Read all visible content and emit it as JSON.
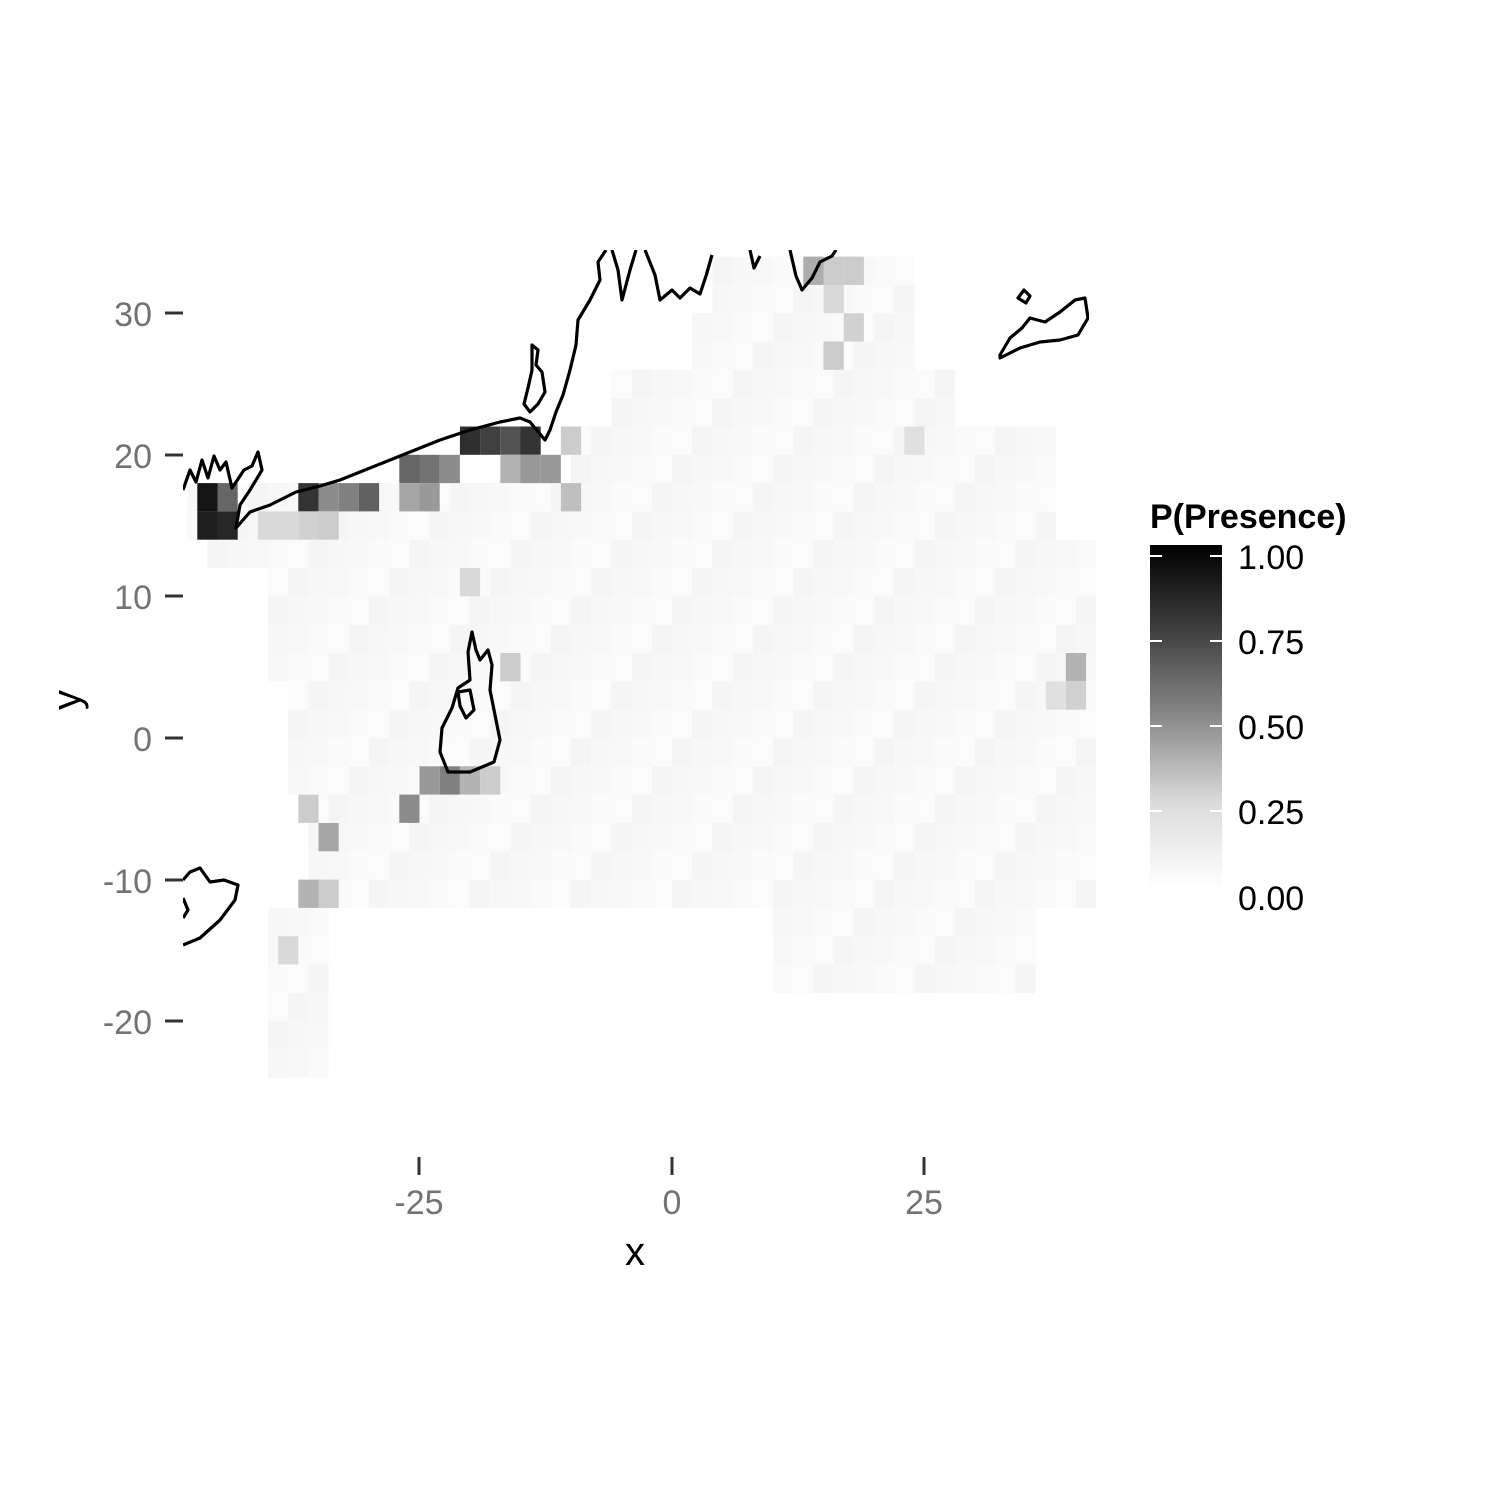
{
  "chart_data": {
    "type": "heatmap",
    "xlabel": "x",
    "ylabel": "y",
    "x_ticks": [
      "-25",
      "0",
      "25"
    ],
    "x_tick_values": [
      -25,
      0,
      25
    ],
    "y_ticks": [
      "30",
      "20",
      "10",
      "0",
      "-10",
      "-20"
    ],
    "y_tick_values": [
      30,
      20,
      10,
      0,
      -10,
      -20
    ],
    "xlim": [
      -49,
      41
    ],
    "ylim": [
      -30,
      35
    ],
    "grid": false,
    "cell_size": 2,
    "color_scale": {
      "low": "#ffffff",
      "high": "#000000"
    },
    "legend": {
      "title": "P(Presence)",
      "position": "right",
      "labels": [
        "1.00",
        "0.75",
        "0.50",
        "0.25",
        "0.00"
      ],
      "values": [
        1.0,
        0.75,
        0.5,
        0.25,
        0.0
      ]
    },
    "highlight_cells": [
      {
        "x": -46,
        "y": 17,
        "p": 0.92
      },
      {
        "x": -46,
        "y": 15,
        "p": 0.88
      },
      {
        "x": -44,
        "y": 15,
        "p": 0.85
      },
      {
        "x": -44,
        "y": 17,
        "p": 0.6
      },
      {
        "x": -36,
        "y": 17,
        "p": 0.8
      },
      {
        "x": -32,
        "y": 17,
        "p": 0.5
      },
      {
        "x": -30,
        "y": 17,
        "p": 0.62
      },
      {
        "x": -34,
        "y": 17,
        "p": 0.45
      },
      {
        "x": -26,
        "y": 19,
        "p": 0.6
      },
      {
        "x": -24,
        "y": 19,
        "p": 0.55
      },
      {
        "x": -22,
        "y": 19,
        "p": 0.45
      },
      {
        "x": -20,
        "y": 21,
        "p": 0.82
      },
      {
        "x": -18,
        "y": 21,
        "p": 0.75
      },
      {
        "x": -16,
        "y": 21,
        "p": 0.68
      },
      {
        "x": -14,
        "y": 21,
        "p": 0.8
      },
      {
        "x": -16,
        "y": 19,
        "p": 0.3
      },
      {
        "x": -14,
        "y": 19,
        "p": 0.4
      },
      {
        "x": -12,
        "y": 19,
        "p": 0.4
      },
      {
        "x": -10,
        "y": 17,
        "p": 0.25
      },
      {
        "x": -10,
        "y": 21,
        "p": 0.2
      },
      {
        "x": -24,
        "y": 17,
        "p": 0.4
      },
      {
        "x": -26,
        "y": 17,
        "p": 0.35
      },
      {
        "x": -40,
        "y": 15,
        "p": 0.15
      },
      {
        "x": -38,
        "y": 15,
        "p": 0.15
      },
      {
        "x": -36,
        "y": 15,
        "p": 0.18
      },
      {
        "x": -34,
        "y": 15,
        "p": 0.2
      },
      {
        "x": -22,
        "y": -3,
        "p": 0.5
      },
      {
        "x": -24,
        "y": -3,
        "p": 0.4
      },
      {
        "x": -26,
        "y": -5,
        "p": 0.45
      },
      {
        "x": -20,
        "y": -3,
        "p": 0.3
      },
      {
        "x": -18,
        "y": -3,
        "p": 0.2
      },
      {
        "x": -34,
        "y": -7,
        "p": 0.35
      },
      {
        "x": -36,
        "y": -11,
        "p": 0.3
      },
      {
        "x": -34,
        "y": -11,
        "p": 0.2
      },
      {
        "x": -36,
        "y": -5,
        "p": 0.2
      },
      {
        "x": -38,
        "y": -15,
        "p": 0.15
      },
      {
        "x": -16,
        "y": 5,
        "p": 0.2
      },
      {
        "x": -20,
        "y": 11,
        "p": 0.15
      },
      {
        "x": 14,
        "y": 33,
        "p": 0.32
      },
      {
        "x": 16,
        "y": 33,
        "p": 0.2
      },
      {
        "x": 18,
        "y": 33,
        "p": 0.2
      },
      {
        "x": 16,
        "y": 31,
        "p": 0.15
      },
      {
        "x": 18,
        "y": 29,
        "p": 0.18
      },
      {
        "x": 16,
        "y": 27,
        "p": 0.2
      },
      {
        "x": 24,
        "y": 21,
        "p": 0.12
      },
      {
        "x": 40,
        "y": 5,
        "p": 0.3
      },
      {
        "x": 40,
        "y": 3,
        "p": 0.18
      },
      {
        "x": 38,
        "y": 3,
        "p": 0.12
      }
    ]
  }
}
